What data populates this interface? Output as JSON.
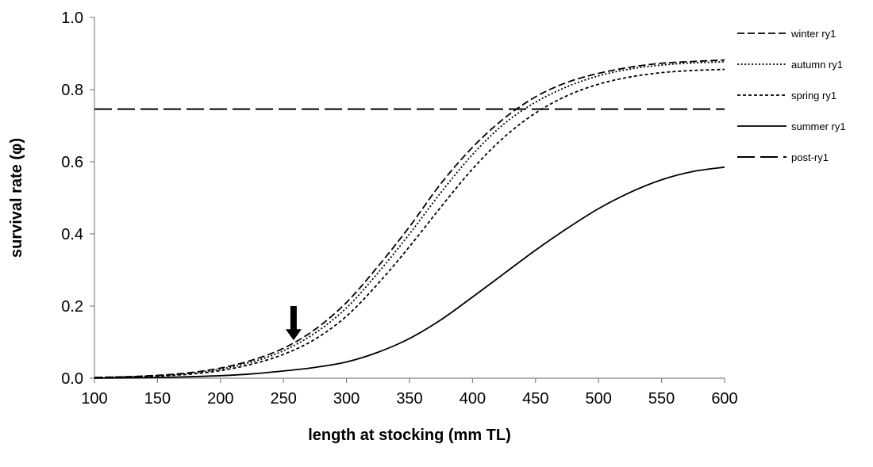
{
  "chart_data": {
    "type": "line",
    "title": "",
    "xlabel": "length at stocking (mm TL)",
    "ylabel": "survival rate (φ)",
    "xlim": [
      100,
      600
    ],
    "ylim": [
      0,
      1.0
    ],
    "x_ticks": [
      "100",
      "150",
      "200",
      "250",
      "300",
      "350",
      "400",
      "450",
      "500",
      "550",
      "600"
    ],
    "y_ticks": [
      "0.0",
      "0.2",
      "0.4",
      "0.6",
      "0.8",
      "1.0"
    ],
    "grid": false,
    "legend_position": "right",
    "x": [
      100,
      125,
      150,
      175,
      200,
      225,
      250,
      275,
      300,
      325,
      350,
      375,
      400,
      425,
      450,
      475,
      500,
      525,
      550,
      575,
      600
    ],
    "series": [
      {
        "name": "winter ry1",
        "line_style": "dashed-medium",
        "color": "#000000",
        "values": [
          0.002,
          0.004,
          0.008,
          0.015,
          0.028,
          0.05,
          0.083,
          0.135,
          0.21,
          0.31,
          0.42,
          0.54,
          0.64,
          0.72,
          0.78,
          0.82,
          0.845,
          0.862,
          0.873,
          0.878,
          0.882
        ]
      },
      {
        "name": "autumn ry1",
        "line_style": "dotted",
        "color": "#000000",
        "values": [
          0.002,
          0.004,
          0.007,
          0.013,
          0.025,
          0.045,
          0.076,
          0.125,
          0.195,
          0.292,
          0.4,
          0.515,
          0.62,
          0.705,
          0.765,
          0.808,
          0.838,
          0.857,
          0.868,
          0.874,
          0.877
        ]
      },
      {
        "name": "spring ry1",
        "line_style": "dashed-short",
        "color": "#000000",
        "values": [
          0.002,
          0.003,
          0.006,
          0.011,
          0.021,
          0.039,
          0.066,
          0.108,
          0.172,
          0.262,
          0.365,
          0.475,
          0.58,
          0.668,
          0.735,
          0.783,
          0.815,
          0.835,
          0.847,
          0.853,
          0.856
        ]
      },
      {
        "name": "summer ry1",
        "line_style": "solid",
        "color": "#000000",
        "values": [
          0.0,
          0.001,
          0.002,
          0.004,
          0.007,
          0.012,
          0.02,
          0.03,
          0.045,
          0.072,
          0.11,
          0.162,
          0.225,
          0.29,
          0.355,
          0.415,
          0.47,
          0.515,
          0.55,
          0.573,
          0.585
        ]
      },
      {
        "name": "post-ry1",
        "line_style": "dashed-long",
        "color": "#000000",
        "values": [
          0.746,
          0.746,
          0.746,
          0.746,
          0.746,
          0.746,
          0.746,
          0.746,
          0.746,
          0.746,
          0.746,
          0.746,
          0.746,
          0.746,
          0.746,
          0.746,
          0.746,
          0.746,
          0.746,
          0.746,
          0.746
        ]
      }
    ],
    "annotations": [
      {
        "type": "arrow-down",
        "x": 258,
        "y_from": 0.2,
        "y_to": 0.105
      }
    ]
  }
}
